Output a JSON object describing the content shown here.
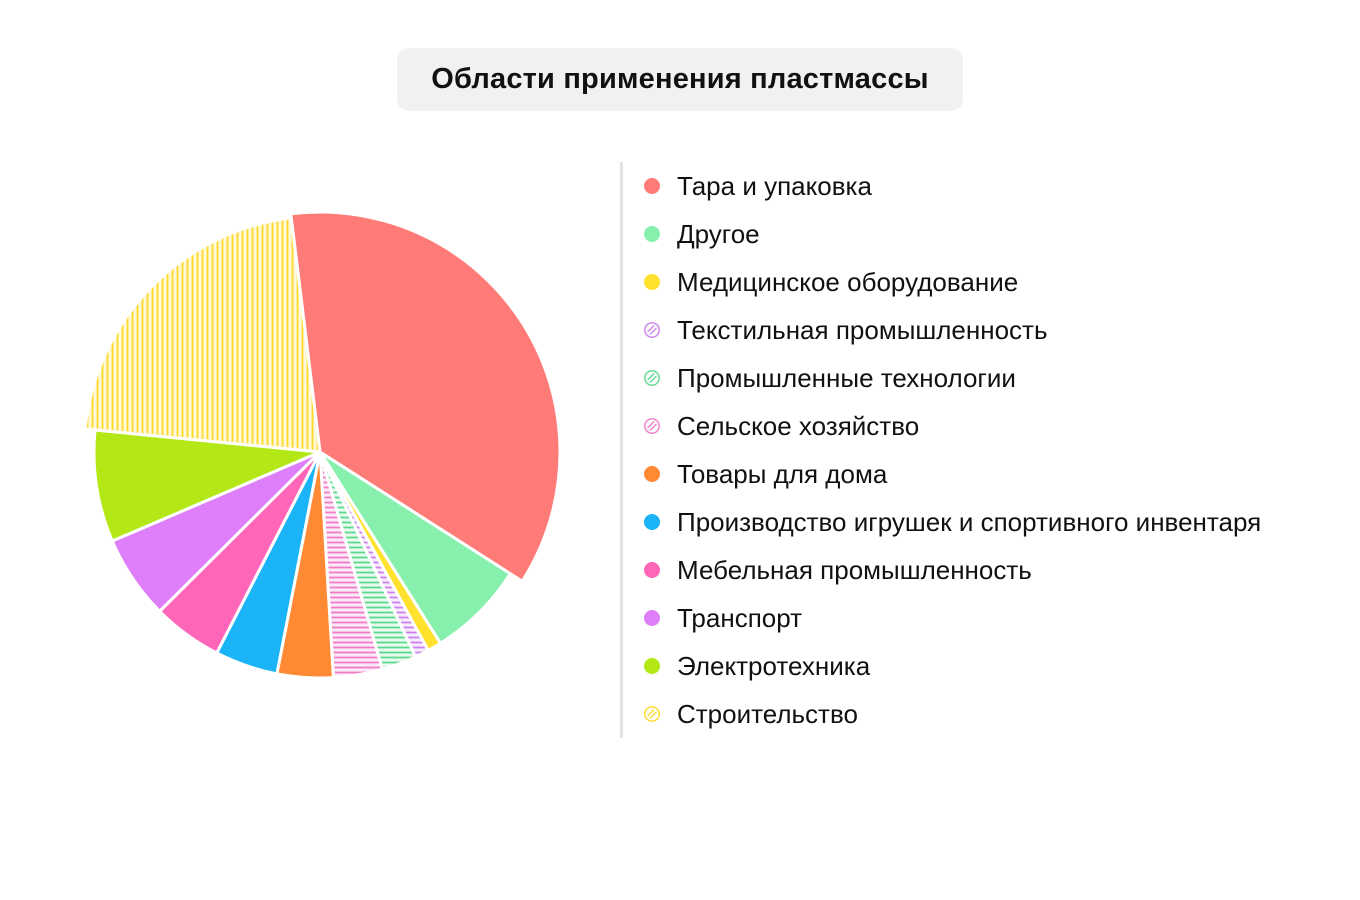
{
  "chart_data": {
    "type": "pie",
    "title": "Области применения пластмассы",
    "legend_position": "right",
    "slices": [
      {
        "label": "Тара и упаковка",
        "value": 36.0,
        "color": "#ff7b78",
        "pattern": "solid"
      },
      {
        "label": "Другое",
        "value": 7.0,
        "color": "#86f0ac",
        "pattern": "solid"
      },
      {
        "label": "Медицинское оборудование",
        "value": 1.0,
        "color": "#ffe12e",
        "pattern": "solid"
      },
      {
        "label": "Текстильная промышленность",
        "value": 1.0,
        "color": "#cc80f0",
        "pattern": "diagonal"
      },
      {
        "label": "Промышленные технологии",
        "value": 2.5,
        "color": "#5cd88e",
        "pattern": "diagonal"
      },
      {
        "label": "Сельское хозяйство",
        "value": 3.5,
        "color": "#f07cc8",
        "pattern": "diagonal"
      },
      {
        "label": "Товары для дома",
        "value": 4.0,
        "color": "#ff8a33",
        "pattern": "solid"
      },
      {
        "label": "Производство игрушек и спортивного инвентаря",
        "value": 4.5,
        "color": "#1ab4f7",
        "pattern": "solid"
      },
      {
        "label": "Мебельная промышленность",
        "value": 5.0,
        "color": "#ff66b8",
        "pattern": "solid"
      },
      {
        "label": "Транспорт",
        "value": 6.0,
        "color": "#de7ef9",
        "pattern": "solid"
      },
      {
        "label": "Электротехника",
        "value": 8.0,
        "color": "#b3e816",
        "pattern": "solid"
      },
      {
        "label": "Строительство",
        "value": 21.5,
        "color": "#ffd92a",
        "pattern": "diagonal"
      }
    ]
  }
}
